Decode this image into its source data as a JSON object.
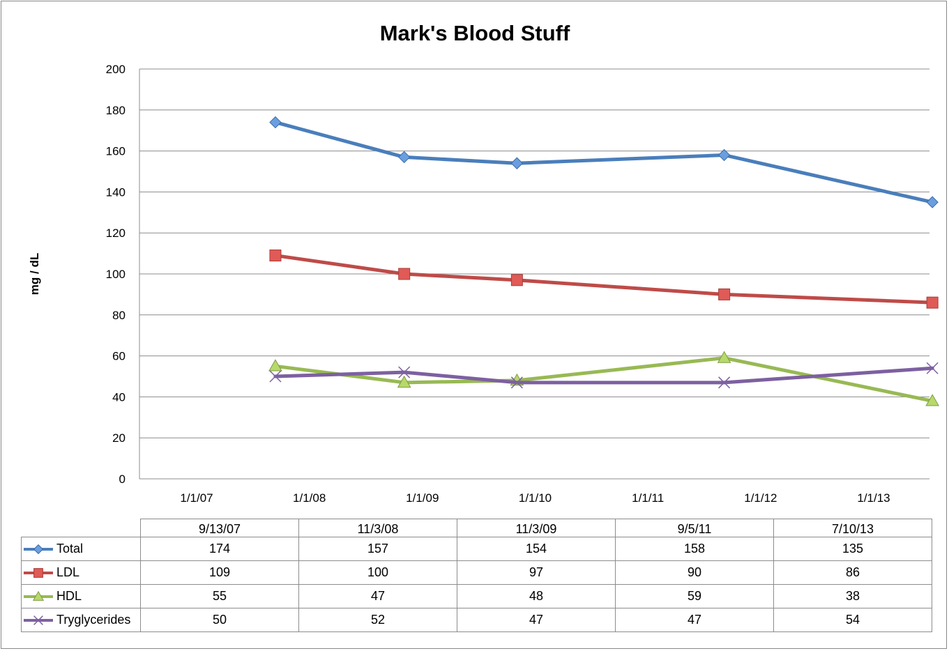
{
  "chart_data": {
    "type": "line",
    "title": "Mark's Blood Stuff",
    "xlabel": "",
    "ylabel": "mg / dL",
    "x_axis_ticks": [
      "1/1/07",
      "1/1/08",
      "1/1/09",
      "1/1/10",
      "1/1/11",
      "1/1/12",
      "1/1/13"
    ],
    "y_axis_ticks": [
      0,
      20,
      40,
      60,
      80,
      100,
      120,
      140,
      160,
      180,
      200
    ],
    "ylim": [
      0,
      200
    ],
    "grid": true,
    "x": [
      "9/13/07",
      "11/3/08",
      "11/3/09",
      "9/5/11",
      "7/10/13"
    ],
    "series": [
      {
        "name": "Total",
        "values": [
          174,
          157,
          154,
          158,
          135
        ],
        "color": "#4a7ebb",
        "marker": "diamond",
        "marker_fill": "#6a9ee0"
      },
      {
        "name": "LDL",
        "values": [
          109,
          100,
          97,
          90,
          86
        ],
        "color": "#be4b48",
        "marker": "square",
        "marker_fill": "#e05a56"
      },
      {
        "name": "HDL",
        "values": [
          55,
          47,
          48,
          59,
          38
        ],
        "color": "#98b954",
        "marker": "triangle",
        "marker_fill": "#b6d96a"
      },
      {
        "name": "Tryglycerides",
        "values": [
          50,
          52,
          47,
          47,
          54
        ],
        "color": "#7d60a0",
        "marker": "x",
        "marker_fill": "#7d60a0"
      }
    ],
    "data_table": true
  }
}
